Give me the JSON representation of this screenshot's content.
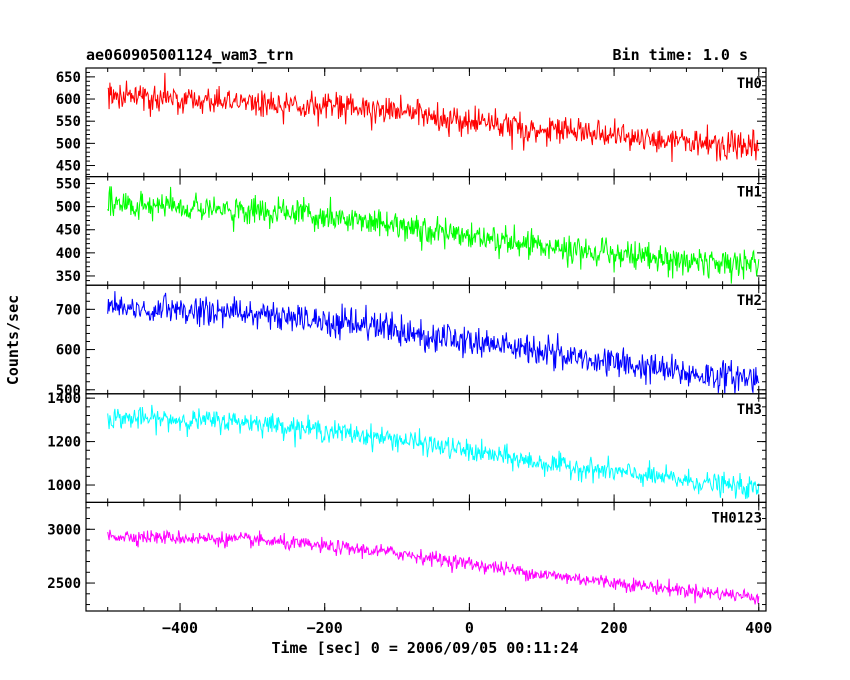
{
  "header": {
    "title": "ae060905001124_wam3_trn",
    "bin_time": "Bin time: 1.0 s"
  },
  "axes": {
    "xlabel": "Time [sec] 0 = 2006/09/05 00:11:24",
    "ylabel": "Counts/sec"
  },
  "chart_data": {
    "type": "line",
    "title": "ae060905001124_wam3_trn",
    "subtitle": "Bin time: 1.0 s",
    "xlabel": "Time [sec] 0 = 2006/09/05 00:11:24",
    "ylabel": "Counts/sec",
    "xlim": [
      -530,
      410
    ],
    "x_range": [
      -500,
      400
    ],
    "x_ticks": [
      -400,
      -200,
      0,
      200,
      400
    ],
    "x_tick_labels": [
      "−400",
      "−200",
      "0",
      "200",
      "400"
    ],
    "grid": false,
    "legend": "none",
    "panels": [
      {
        "name": "TH0",
        "color": "#ff0000",
        "ylim": [
          425,
          670
        ],
        "y_ticks": [
          450,
          500,
          550,
          600,
          650
        ],
        "y_tick_labels": [
          "450",
          "500",
          "550",
          "600",
          "650"
        ],
        "trend": [
          [
            -500,
            608
          ],
          [
            -300,
            592
          ],
          [
            -100,
            572
          ],
          [
            100,
            533
          ],
          [
            300,
            502
          ],
          [
            400,
            490
          ]
        ],
        "spread": 30
      },
      {
        "name": "TH1",
        "color": "#00ff00",
        "ylim": [
          330,
          565
        ],
        "y_ticks": [
          350,
          400,
          450,
          500,
          550
        ],
        "y_tick_labels": [
          "350",
          "400",
          "450",
          "500",
          "550"
        ],
        "trend": [
          [
            -500,
            505
          ],
          [
            -300,
            492
          ],
          [
            -100,
            460
          ],
          [
            100,
            415
          ],
          [
            300,
            380
          ],
          [
            400,
            375
          ]
        ],
        "spread": 28
      },
      {
        "name": "TH2",
        "color": "#0000ff",
        "ylim": [
          490,
          760
        ],
        "y_ticks": [
          500,
          600,
          700
        ],
        "y_tick_labels": [
          "500",
          "600",
          "700"
        ],
        "trend": [
          [
            -500,
            705
          ],
          [
            -300,
            690
          ],
          [
            -100,
            648
          ],
          [
            100,
            595
          ],
          [
            300,
            540
          ],
          [
            400,
            528
          ]
        ],
        "spread": 35
      },
      {
        "name": "TH3",
        "color": "#00ffff",
        "ylim": [
          920,
          1420
        ],
        "y_ticks": [
          1000,
          1200,
          1400
        ],
        "y_tick_labels": [
          "1000",
          "1200",
          "1400"
        ],
        "trend": [
          [
            -500,
            1310
          ],
          [
            -300,
            1290
          ],
          [
            -100,
            1210
          ],
          [
            100,
            1100
          ],
          [
            300,
            1020
          ],
          [
            400,
            980
          ]
        ],
        "spread": 45
      },
      {
        "name": "TH0123",
        "color": "#ff00ff",
        "ylim": [
          2240,
          3250
        ],
        "y_ticks": [
          2500,
          3000
        ],
        "y_tick_labels": [
          "2500",
          "3000"
        ],
        "trend": [
          [
            -500,
            2940
          ],
          [
            -300,
            2900
          ],
          [
            -100,
            2780
          ],
          [
            100,
            2580
          ],
          [
            300,
            2430
          ],
          [
            400,
            2370
          ]
        ],
        "spread": 60
      }
    ]
  }
}
